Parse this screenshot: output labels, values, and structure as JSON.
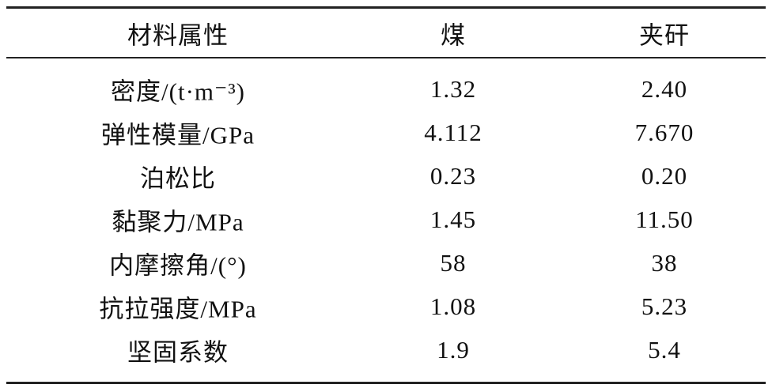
{
  "table": {
    "header": [
      "材料属性",
      "煤",
      "夹矸"
    ],
    "rows": [
      [
        "密度/(t·m⁻³)",
        "1.32",
        "2.40"
      ],
      [
        "弹性模量/GPa",
        "4.112",
        "7.670"
      ],
      [
        "泊松比",
        "0.23",
        "0.20"
      ],
      [
        "黏聚力/MPa",
        "1.45",
        "11.50"
      ],
      [
        "内摩擦角/(°)",
        "58",
        "38"
      ],
      [
        "抗拉强度/MPa",
        "1.08",
        "5.23"
      ],
      [
        "坚固系数",
        "1.9",
        "5.4"
      ]
    ]
  }
}
